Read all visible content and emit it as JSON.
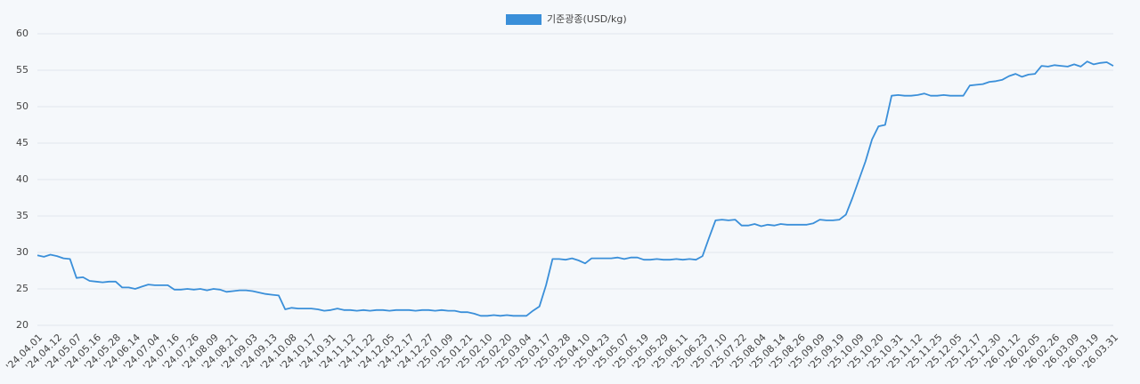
{
  "chart_data": {
    "type": "line",
    "categories": [
      "'24.04.01",
      null,
      null,
      "'24.04.12",
      null,
      null,
      "'24.05.07",
      null,
      null,
      "'24.05.16",
      null,
      null,
      "'24.05.28",
      null,
      null,
      "'24.06.14",
      null,
      null,
      "'24.07.04",
      null,
      null,
      "'24.07.16",
      null,
      null,
      "'24.07.26",
      null,
      null,
      "'24.08.09",
      null,
      null,
      "'24.08.21",
      null,
      null,
      "'24.09.03",
      null,
      null,
      "'24.09.13",
      null,
      null,
      "'24.10.08",
      null,
      null,
      "'24.10.17",
      null,
      null,
      "'24.10.31",
      null,
      null,
      "'24.11.12",
      null,
      null,
      "'24.11.22",
      null,
      null,
      "'24.12.05",
      null,
      null,
      "'24.12.17",
      null,
      null,
      "'24.12.27",
      null,
      null,
      "'25.01.09",
      null,
      null,
      "'25.01.21",
      null,
      null,
      "'25.02.10",
      null,
      null,
      "'25.02.20",
      null,
      null,
      "'25.03.04",
      null,
      null,
      "'25.03.17",
      null,
      null,
      "'25.03.28",
      null,
      null,
      "'25.04.10",
      null,
      null,
      "'25.04.23",
      null,
      null,
      "'25.05.07",
      null,
      null,
      "'25.05.19",
      null,
      null,
      "'25.05.29",
      null,
      null,
      "'25.06.11",
      null,
      null,
      "'25.06.23",
      null,
      null,
      "'25.07.10",
      null,
      null,
      "'25.07.22",
      null,
      null,
      "'25.08.04",
      null,
      null,
      "'25.08.14",
      null,
      null,
      "'25.08.26",
      null,
      null,
      "'25.09.09",
      null,
      null,
      "'25.09.19",
      null,
      null,
      "'25.10.09",
      null,
      null,
      "'25.10.20",
      null,
      null,
      "'25.10.31",
      null,
      null,
      "'25.11.12",
      null,
      null,
      "'25.11.25",
      null,
      null,
      "'25.12.05",
      null,
      null,
      "'25.12.17",
      null,
      null,
      "'25.12.30",
      null,
      null,
      "'26.01.12",
      null,
      null,
      "'26.02.05",
      null,
      null,
      "'26.02.26",
      null,
      null,
      "'26.03.09",
      null,
      null,
      "'26.03.19",
      null,
      null,
      "'26.03.31"
    ],
    "series": [
      {
        "name": "기준광종(USD/kg)",
        "color": "#3a8fd9",
        "values": [
          29.6,
          29.4,
          29.7,
          29.5,
          29.2,
          29.1,
          26.5,
          26.6,
          26.1,
          26.0,
          25.9,
          26.0,
          26.0,
          25.2,
          25.2,
          25.0,
          25.3,
          25.6,
          25.5,
          25.5,
          25.5,
          24.9,
          24.9,
          25.0,
          24.9,
          25.0,
          24.8,
          25.0,
          24.9,
          24.6,
          24.7,
          24.8,
          24.8,
          24.7,
          24.5,
          24.3,
          24.2,
          24.1,
          22.2,
          22.4,
          22.3,
          22.3,
          22.3,
          22.2,
          22.0,
          22.1,
          22.3,
          22.1,
          22.1,
          22.0,
          22.1,
          22.0,
          22.1,
          22.1,
          22.0,
          22.1,
          22.1,
          22.1,
          22.0,
          22.1,
          22.1,
          22.0,
          22.1,
          22.0,
          22.0,
          21.8,
          21.8,
          21.6,
          21.3,
          21.3,
          21.4,
          21.3,
          21.4,
          21.3,
          21.3,
          21.3,
          22.0,
          22.6,
          25.5,
          29.1,
          29.1,
          29.0,
          29.2,
          28.9,
          28.5,
          29.2,
          29.2,
          29.2,
          29.2,
          29.3,
          29.1,
          29.3,
          29.3,
          29.0,
          29.0,
          29.1,
          29.0,
          29.0,
          29.1,
          29.0,
          29.1,
          29.0,
          29.5,
          32.0,
          34.4,
          34.5,
          34.4,
          34.5,
          33.7,
          33.7,
          33.9,
          33.6,
          33.8,
          33.7,
          33.9,
          33.8,
          33.8,
          33.8,
          33.8,
          34.0,
          34.5,
          34.4,
          34.4,
          34.5,
          35.2,
          37.5,
          40.0,
          42.5,
          45.5,
          47.3,
          47.5,
          51.5,
          51.6,
          51.5,
          51.5,
          51.6,
          51.8,
          51.5,
          51.5,
          51.6,
          51.5,
          51.5,
          51.5,
          52.9,
          53.0,
          53.1,
          53.4,
          53.5,
          53.7,
          54.2,
          54.5,
          54.1,
          54.4,
          54.5,
          55.6,
          55.5,
          55.7,
          55.6,
          55.5,
          55.8,
          55.5,
          56.2,
          55.8,
          56.0,
          56.1,
          55.6
        ]
      }
    ],
    "ylim": [
      20,
      60
    ],
    "yticks": [
      20,
      25,
      30,
      35,
      40,
      45,
      50,
      55,
      60
    ],
    "grid": true,
    "legend": "top"
  }
}
